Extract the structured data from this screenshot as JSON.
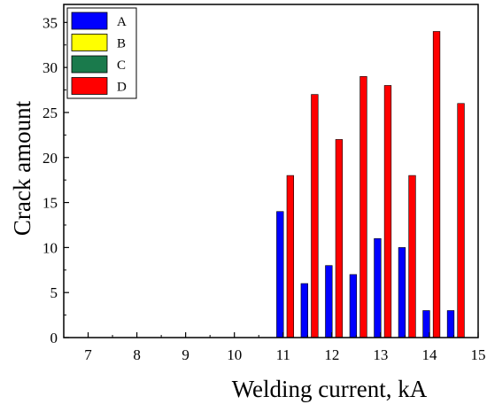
{
  "chart_data": {
    "type": "bar",
    "xlabel": "Welding current, kA",
    "ylabel": "Crack amount",
    "xlim": [
      6.5,
      15
    ],
    "ylim": [
      0,
      37
    ],
    "xticks": [
      "7",
      "8",
      "9",
      "10",
      "11",
      "12",
      "13",
      "14",
      "15"
    ],
    "yticks": [
      "0",
      "5",
      "10",
      "15",
      "20",
      "25",
      "30",
      "35"
    ],
    "legend_position": "top-left",
    "grid": false,
    "x": [
      11,
      11.5,
      12,
      12.5,
      13,
      13.5,
      14,
      14.5
    ],
    "series": [
      {
        "name": "A",
        "color": "#0000ff",
        "values": [
          14,
          6,
          8,
          7,
          11,
          10,
          3,
          3
        ]
      },
      {
        "name": "B",
        "color": "#ffff00",
        "values": [
          0,
          0,
          0,
          0,
          0,
          0,
          0,
          0
        ]
      },
      {
        "name": "C",
        "color": "#1a7a4c",
        "values": [
          0,
          0,
          0,
          0,
          0,
          0,
          0,
          0
        ]
      },
      {
        "name": "D",
        "color": "#ff0000",
        "values": [
          18,
          27,
          22,
          29,
          28,
          18,
          34,
          26
        ]
      }
    ]
  }
}
